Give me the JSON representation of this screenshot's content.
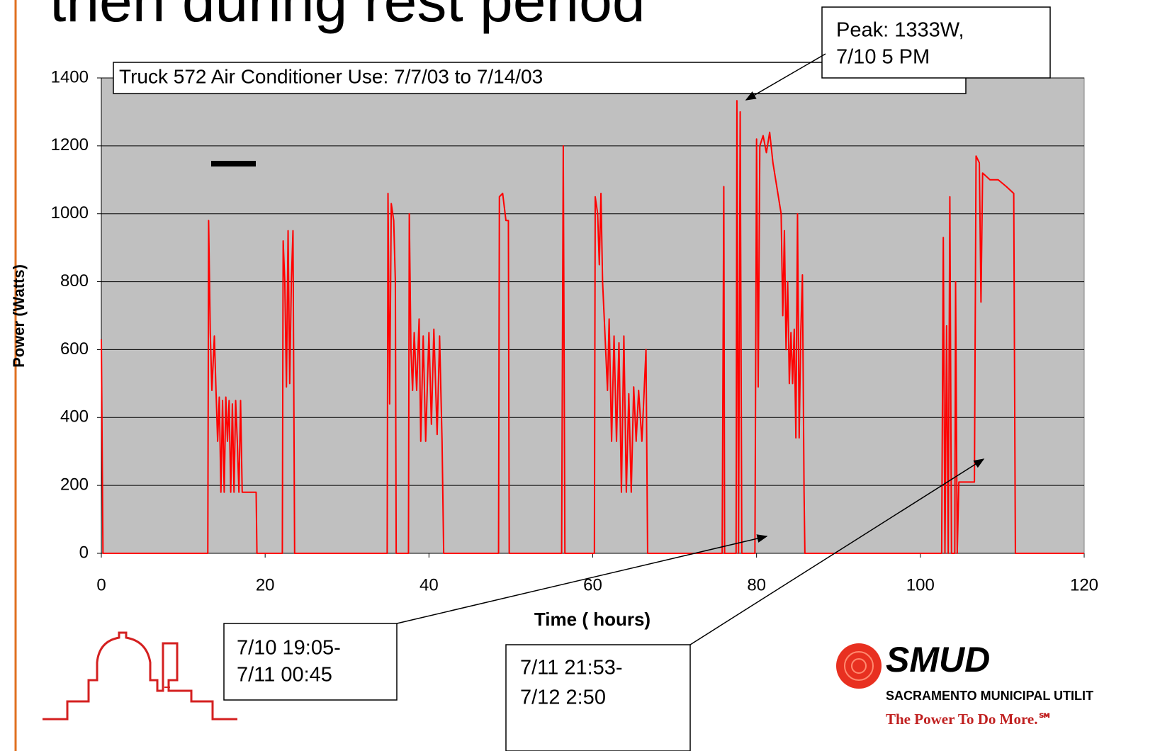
{
  "slide": {
    "title": "then during rest period",
    "logo_name": "SMUD",
    "logo_subtitle": "SACRAMENTO MUNICIPAL UTILIT",
    "logo_tagline": "The Power To Do More.℠"
  },
  "chart_data": {
    "type": "line",
    "title": "Truck 572  Air Conditioner Use:  7/7/03 to 7/14/03",
    "x_label": "Time ( hours)",
    "y_label": "Power (Watts)",
    "color": "#ff0000",
    "grid": true,
    "xlim": [
      0,
      120
    ],
    "ylim": [
      0,
      1400
    ],
    "xticks": [
      0,
      20,
      40,
      60,
      80,
      100,
      120
    ],
    "yticks": [
      0,
      200,
      400,
      600,
      800,
      1000,
      1200,
      1400
    ],
    "annotations": [
      {
        "lines": [
          "Peak: 1333W,",
          "7/10 5 PM"
        ]
      },
      {
        "lines": [
          "7/10 19:05-",
          "7/11 00:45"
        ]
      },
      {
        "lines": [
          "7/11 21:53-",
          "7/12  2:50"
        ]
      }
    ],
    "x": [
      0,
      0.2,
      13,
      13.1,
      13.3,
      13.5,
      13.8,
      14,
      14.2,
      14.4,
      14.6,
      14.8,
      15,
      15.2,
      15.4,
      15.6,
      15.8,
      16,
      16.2,
      16.4,
      16.6,
      16.8,
      17,
      17.2,
      18.9,
      19,
      22.1,
      22.2,
      22.4,
      22.6,
      22.8,
      23,
      23.2,
      23.4,
      23.6,
      34.9,
      35,
      35.2,
      35.4,
      35.7,
      35.9,
      36,
      37.5,
      37.6,
      37.8,
      38,
      38.2,
      38.5,
      38.8,
      39,
      39.3,
      39.6,
      40,
      40.3,
      40.6,
      41,
      41.3,
      41.6,
      41.8,
      48.5,
      48.6,
      49,
      49.4,
      49.7,
      49.8,
      56.2,
      56.4,
      56.6,
      60.2,
      60.3,
      60.6,
      60.8,
      61,
      61.2,
      61.5,
      61.8,
      62,
      62.3,
      62.6,
      62.9,
      63.2,
      63.5,
      63.8,
      64.1,
      64.4,
      64.7,
      65,
      65.3,
      65.6,
      66,
      66.5,
      66.7,
      75.8,
      76,
      76.1,
      77.5,
      77.6,
      77.8,
      78,
      78.2,
      79.8,
      80,
      80.2,
      80.4,
      80.8,
      81.2,
      81.6,
      82,
      82.6,
      83,
      83.2,
      83.4,
      83.6,
      83.8,
      84,
      84.2,
      84.4,
      84.6,
      84.8,
      85,
      85.2,
      85.4,
      85.6,
      85.8,
      85.9,
      102.6,
      102.8,
      103,
      103.2,
      103.4,
      103.6,
      103.8,
      104.2,
      104.3,
      104.5,
      104.7,
      106.6,
      106.8,
      107.2,
      107.4,
      107.6,
      108.5,
      109.5,
      110.5,
      111.4,
      111.6,
      120
    ],
    "values": [
      630,
      0,
      0,
      980,
      650,
      480,
      640,
      480,
      330,
      460,
      180,
      450,
      180,
      460,
      330,
      450,
      180,
      440,
      180,
      450,
      330,
      180,
      450,
      180,
      180,
      0,
      0,
      920,
      800,
      490,
      950,
      500,
      800,
      950,
      0,
      0,
      1060,
      440,
      1030,
      980,
      800,
      0,
      0,
      1000,
      600,
      480,
      650,
      480,
      690,
      330,
      640,
      330,
      650,
      380,
      660,
      350,
      640,
      330,
      0,
      0,
      1050,
      1060,
      980,
      980,
      0,
      0,
      1200,
      0,
      0,
      1050,
      1000,
      850,
      1060,
      800,
      640,
      480,
      690,
      330,
      640,
      330,
      620,
      180,
      640,
      180,
      470,
      180,
      490,
      330,
      480,
      330,
      600,
      0,
      0,
      1080,
      0,
      0,
      1333,
      0,
      1300,
      0,
      0,
      1220,
      490,
      1200,
      1230,
      1180,
      1240,
      1150,
      1060,
      1000,
      700,
      950,
      600,
      800,
      500,
      650,
      500,
      660,
      340,
      1000,
      340,
      650,
      820,
      180,
      0,
      0,
      930,
      0,
      670,
      0,
      1050,
      0,
      0,
      800,
      0,
      210,
      210,
      1170,
      1150,
      740,
      1120,
      1100,
      1100,
      1080,
      1060,
      0,
      0
    ]
  }
}
